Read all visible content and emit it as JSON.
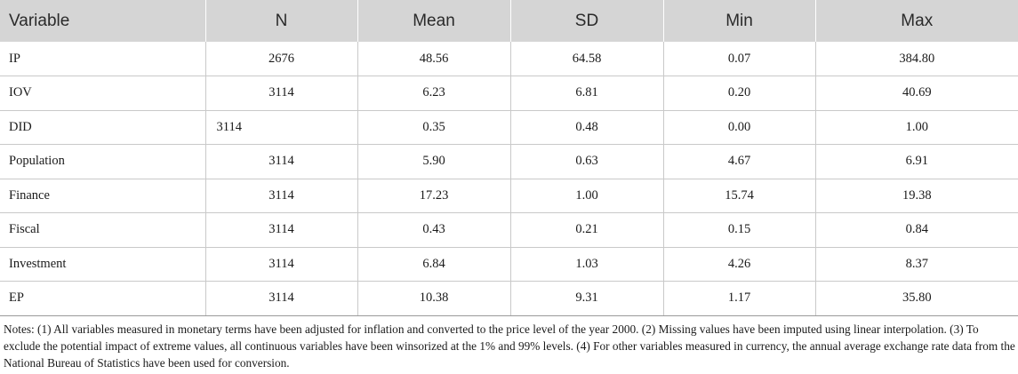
{
  "table": {
    "headers": [
      "Variable",
      "N",
      "Mean",
      "SD",
      "Min",
      "Max"
    ],
    "rows": [
      [
        "IP",
        "2676",
        "48.56",
        "64.58",
        "0.07",
        "384.80"
      ],
      [
        "IOV",
        "3114",
        "6.23",
        "6.81",
        "0.20",
        "40.69"
      ],
      [
        "DID",
        "3114",
        "0.35",
        "0.48",
        "0.00",
        "1.00"
      ],
      [
        "Population",
        "3114",
        "5.90",
        "0.63",
        "4.67",
        "6.91"
      ],
      [
        "Finance",
        "3114",
        "17.23",
        "1.00",
        "15.74",
        "19.38"
      ],
      [
        "Fiscal",
        "3114",
        "0.43",
        "0.21",
        "0.15",
        "0.84"
      ],
      [
        "Investment",
        "3114",
        "6.84",
        "1.03",
        "4.26",
        "8.37"
      ],
      [
        "EP",
        "3114",
        "10.38",
        "9.31",
        "1.17",
        "35.80"
      ]
    ]
  },
  "notes": "Notes: (1) All variables measured in monetary terms have been adjusted for inflation and converted to the price level of the year 2000. (2) Missing values have been imputed using linear interpolation. (3) To exclude the potential impact of extreme values, all continuous variables have been winsorized at the 1% and 99% levels. (4) For other variables measured in currency, the annual average exchange rate data from the National Bureau of Statistics have been used for conversion."
}
